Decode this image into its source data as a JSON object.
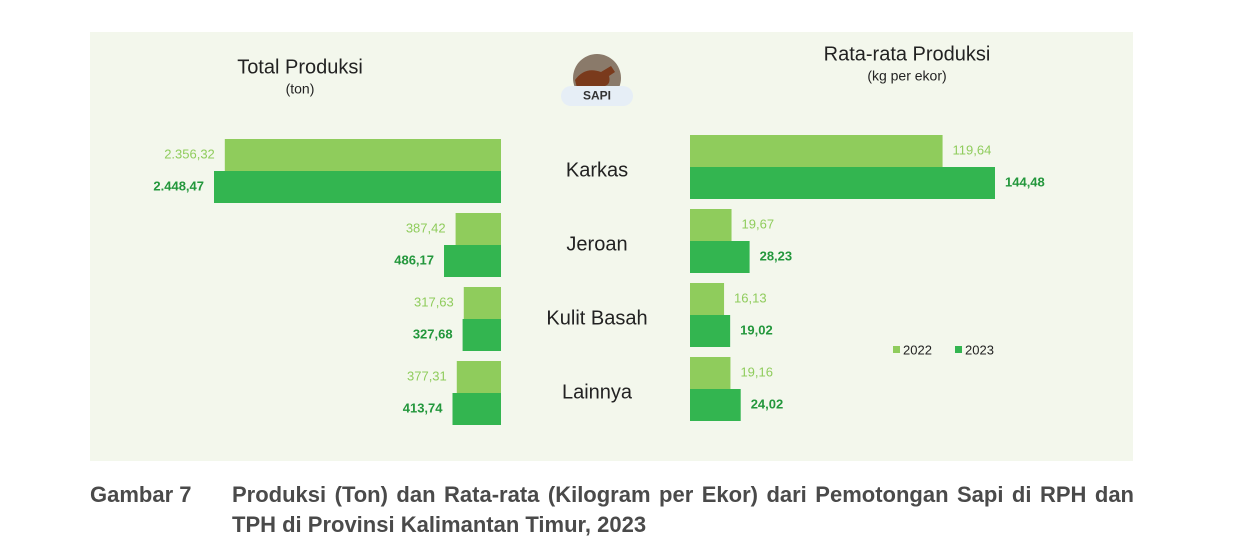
{
  "chart_data": [
    {
      "type": "bar",
      "title": "Total Produksi",
      "subtitle": "(ton)",
      "categories": [
        "Karkas",
        "Jeroan",
        "Kulit Basah",
        "Lainnya"
      ],
      "series": [
        {
          "name": "2022",
          "color": "#8fcc5c",
          "values": [
            2356.32,
            387.42,
            317.63,
            377.31
          ],
          "value_labels": [
            "2.356,32",
            "387,42",
            "317,63",
            "377,31"
          ]
        },
        {
          "name": "2023",
          "color": "#33b550",
          "values": [
            2448.47,
            486.17,
            327.68,
            413.74
          ],
          "value_labels": [
            "2.448,47",
            "486,17",
            "327,68",
            "413,74"
          ]
        }
      ]
    },
    {
      "type": "bar",
      "title": "Rata-rata Produksi",
      "subtitle": "(kg per ekor)",
      "legend": "right",
      "series": [
        {
          "name": "2022",
          "color": "#8fcc5c",
          "values": [
            119.64,
            19.67,
            16.13,
            19.16
          ],
          "value_labels": [
            "119,64",
            "19,67",
            "16,13",
            "19,16"
          ]
        },
        {
          "name": "2023",
          "color": "#33b550",
          "values": [
            144.48,
            28.23,
            19.02,
            24.02
          ],
          "value_labels": [
            "144,48",
            "28,23",
            "19,02",
            "24,02"
          ]
        }
      ]
    }
  ],
  "badge": "SAPI",
  "caption": {
    "label": "Gambar 7",
    "text": "Produksi (Ton) dan Rata-rata (Kilogram per Ekor) dari Pemotongan Sapi di RPH dan TPH di Provinsi Kalimantan Timur, 2023"
  }
}
